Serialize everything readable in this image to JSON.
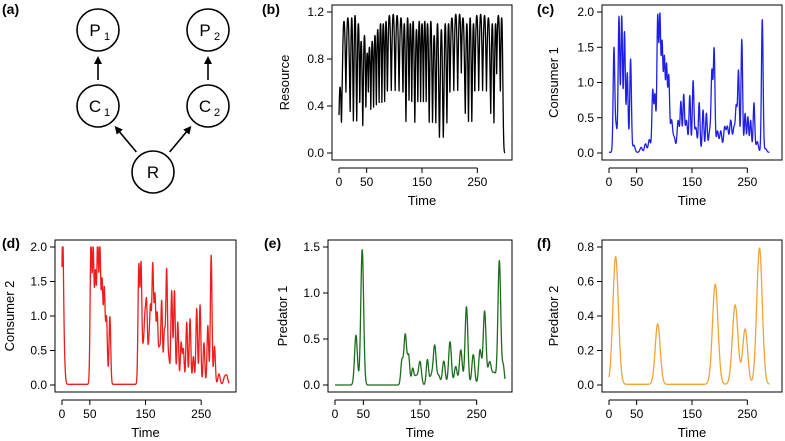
{
  "food_web": {
    "panel_label": "(a)",
    "nodes": [
      {
        "id": "P1",
        "letter": "P",
        "sub": "1"
      },
      {
        "id": "P2",
        "letter": "P",
        "sub": "2"
      },
      {
        "id": "C1",
        "letter": "C",
        "sub": "1"
      },
      {
        "id": "C2",
        "letter": "C",
        "sub": "2"
      },
      {
        "id": "R",
        "letter": "R",
        "sub": ""
      }
    ],
    "edges": [
      [
        "R",
        "C1"
      ],
      [
        "R",
        "C2"
      ],
      [
        "C1",
        "P1"
      ],
      [
        "C2",
        "P2"
      ]
    ]
  },
  "colors": {
    "resource": "#000000",
    "consumer1": "#1f1fe6",
    "consumer2": "#ee1c1c",
    "predator1": "#1e6b1e",
    "predator2": "#f2a33a"
  },
  "chart_data": [
    {
      "panel": "(b)",
      "type": "line",
      "ylabel": "Resource",
      "xlabel": "Time",
      "xlim": [
        0,
        300
      ],
      "ylim": [
        0,
        1.2
      ],
      "xticks": [
        0,
        50,
        150,
        250
      ],
      "yticks": [
        0.0,
        0.4,
        0.8,
        1.2
      ],
      "ytick_labels": [
        "0.0",
        "0.4",
        "0.8",
        "1.2"
      ],
      "color_key": "resource",
      "kind": "resource",
      "t_start": 0,
      "t_end": 300,
      "base": 0.0,
      "peaks": [
        [
          2,
          0.56,
          2
        ],
        [
          9,
          1.12,
          3
        ],
        [
          16,
          1.15,
          3
        ],
        [
          23,
          1.15,
          2
        ],
        [
          29,
          1.17,
          2
        ],
        [
          35,
          1.1,
          2
        ],
        [
          40,
          0.95,
          2
        ],
        [
          46,
          1.0,
          2
        ],
        [
          51,
          0.85,
          2
        ],
        [
          55,
          0.9,
          2
        ],
        [
          60,
          0.95,
          2
        ],
        [
          65,
          1.0,
          2
        ],
        [
          70,
          1.05,
          2
        ],
        [
          75,
          1.1,
          2
        ],
        [
          80,
          1.1,
          2
        ],
        [
          85,
          1.12,
          2
        ],
        [
          91,
          1.17,
          3
        ],
        [
          98,
          1.18,
          3
        ],
        [
          105,
          1.17,
          3
        ],
        [
          112,
          1.15,
          3
        ],
        [
          118,
          1.1,
          2
        ],
        [
          124,
          1.15,
          2
        ],
        [
          129,
          1.1,
          2
        ],
        [
          134,
          1.12,
          2
        ],
        [
          140,
          1.05,
          2
        ],
        [
          145,
          1.12,
          2
        ],
        [
          150,
          1.1,
          2
        ],
        [
          155,
          1.12,
          2
        ],
        [
          160,
          1.1,
          2
        ],
        [
          166,
          1.12,
          2
        ],
        [
          172,
          1.0,
          2
        ],
        [
          178,
          1.1,
          2
        ],
        [
          185,
          1.05,
          2
        ],
        [
          192,
          1.1,
          2
        ],
        [
          198,
          1.1,
          2
        ],
        [
          204,
          1.15,
          3
        ],
        [
          211,
          1.18,
          3
        ],
        [
          218,
          1.18,
          3
        ],
        [
          224,
          1.15,
          3
        ],
        [
          231,
          1.1,
          2
        ],
        [
          237,
          1.15,
          2
        ],
        [
          243,
          1.1,
          2
        ],
        [
          249,
          1.17,
          3
        ],
        [
          256,
          1.18,
          3
        ],
        [
          263,
          1.17,
          3
        ],
        [
          270,
          1.15,
          3
        ],
        [
          277,
          1.1,
          2
        ],
        [
          283,
          1.1,
          2
        ],
        [
          288,
          1.17,
          3
        ],
        [
          294,
          1.15,
          2
        ]
      ]
    },
    {
      "panel": "(c)",
      "type": "line",
      "ylabel": "Consumer 1",
      "xlabel": "Time",
      "xlim": [
        0,
        300
      ],
      "ylim": [
        0,
        2.0
      ],
      "xticks": [
        0,
        50,
        150,
        250
      ],
      "yticks": [
        0.0,
        0.5,
        1.0,
        1.5,
        2.0
      ],
      "ytick_labels": [
        "0.0",
        "0.5",
        "1.0",
        "1.5",
        "2.0"
      ],
      "color_key": "consumer1",
      "kind": "spikes",
      "t_start": 0,
      "t_end": 290,
      "base": 0.01,
      "peaks": [
        [
          9,
          1.48,
          1.5
        ],
        [
          13,
          0.35,
          1.5
        ],
        [
          18,
          1.92,
          1.5
        ],
        [
          23,
          1.92,
          1.5
        ],
        [
          28,
          1.7,
          1.5
        ],
        [
          33,
          1.12,
          1.5
        ],
        [
          39,
          1.32,
          1.5
        ],
        [
          45,
          0.1,
          2
        ],
        [
          58,
          0.07,
          2
        ],
        [
          66,
          0.12,
          2
        ],
        [
          73,
          0.18,
          2
        ],
        [
          79,
          0.87,
          1.5
        ],
        [
          83,
          0.8,
          1.5
        ],
        [
          88,
          1.9,
          1.5
        ],
        [
          92,
          1.88,
          1.5
        ],
        [
          96,
          1.5,
          1.5
        ],
        [
          100,
          1.3,
          1.5
        ],
        [
          104,
          1.2,
          1.5
        ],
        [
          108,
          1.05,
          1.5
        ],
        [
          113,
          0.45,
          2
        ],
        [
          118,
          0.2,
          2
        ],
        [
          125,
          0.45,
          2
        ],
        [
          130,
          0.7,
          1.5
        ],
        [
          135,
          0.8,
          1.5
        ],
        [
          140,
          0.45,
          2
        ],
        [
          146,
          0.8,
          1.5
        ],
        [
          152,
          1.0,
          1.5
        ],
        [
          157,
          0.35,
          2
        ],
        [
          163,
          0.7,
          1.5
        ],
        [
          170,
          0.6,
          1.5
        ],
        [
          176,
          0.55,
          1.5
        ],
        [
          182,
          0.3,
          2
        ],
        [
          186,
          1.1,
          1.5
        ],
        [
          190,
          1.45,
          1.5
        ],
        [
          196,
          0.3,
          2
        ],
        [
          202,
          0.3,
          2
        ],
        [
          209,
          0.35,
          2
        ],
        [
          214,
          0.35,
          2
        ],
        [
          220,
          0.45,
          2
        ],
        [
          226,
          0.35,
          2
        ],
        [
          230,
          0.6,
          1.5
        ],
        [
          234,
          1.15,
          1.5
        ],
        [
          240,
          1.6,
          1.5
        ],
        [
          246,
          0.55,
          1.5
        ],
        [
          251,
          0.5,
          1.5
        ],
        [
          256,
          0.45,
          1.5
        ],
        [
          262,
          0.7,
          1.5
        ],
        [
          268,
          0.15,
          2
        ],
        [
          277,
          1.88,
          1.5
        ],
        [
          283,
          0.05,
          2
        ]
      ]
    },
    {
      "panel": "(d)",
      "type": "line",
      "ylabel": "Consumer 2",
      "xlabel": "Time",
      "xlim": [
        0,
        300
      ],
      "ylim": [
        0,
        2.0
      ],
      "xticks": [
        0,
        50,
        150,
        250
      ],
      "yticks": [
        0.0,
        0.5,
        1.0,
        1.5,
        2.0
      ],
      "ytick_labels": [
        "0.0",
        "0.5",
        "1.0",
        "1.5",
        "2.0"
      ],
      "color_key": "consumer2",
      "kind": "spikes",
      "t_start": 0,
      "t_end": 300,
      "base": 0.01,
      "peaks": [
        [
          1,
          1.9,
          1.5
        ],
        [
          3,
          0.55,
          2
        ],
        [
          52,
          2.02,
          1.5
        ],
        [
          56,
          1.9,
          1.5
        ],
        [
          60,
          1.55,
          1.5
        ],
        [
          64,
          2.0,
          1.5
        ],
        [
          68,
          1.95,
          1.5
        ],
        [
          72,
          1.45,
          1.5
        ],
        [
          76,
          1.35,
          1.5
        ],
        [
          80,
          0.95,
          1.5
        ],
        [
          86,
          0.98,
          1.5
        ],
        [
          138,
          1.7,
          1.5
        ],
        [
          142,
          1.72,
          1.5
        ],
        [
          146,
          0.45,
          1.5
        ],
        [
          149,
          0.85,
          1.5
        ],
        [
          152,
          1.1,
          1.5
        ],
        [
          156,
          0.5,
          1.5
        ],
        [
          159,
          1.05,
          1.5
        ],
        [
          163,
          1.7,
          1.5
        ],
        [
          167,
          1.25,
          1.5
        ],
        [
          171,
          1.0,
          1.5
        ],
        [
          175,
          0.5,
          1.5
        ],
        [
          179,
          1.2,
          1.5
        ],
        [
          184,
          0.75,
          1.5
        ],
        [
          188,
          1.65,
          1.5
        ],
        [
          192,
          0.35,
          1.5
        ],
        [
          197,
          1.35,
          1.5
        ],
        [
          202,
          1.35,
          1.5
        ],
        [
          208,
          0.9,
          1.5
        ],
        [
          214,
          0.6,
          1.5
        ],
        [
          218,
          0.5,
          1.5
        ],
        [
          224,
          0.9,
          1.5
        ],
        [
          230,
          0.95,
          1.5
        ],
        [
          236,
          0.4,
          1.5
        ],
        [
          242,
          1.1,
          1.5
        ],
        [
          248,
          1.15,
          1.5
        ],
        [
          255,
          0.6,
          1.5
        ],
        [
          262,
          0.85,
          1.5
        ],
        [
          268,
          1.87,
          1.5
        ],
        [
          274,
          0.55,
          1.5
        ],
        [
          282,
          0.15,
          2
        ],
        [
          292,
          0.1,
          2
        ],
        [
          296,
          0.12,
          2
        ]
      ]
    },
    {
      "panel": "(e)",
      "type": "line",
      "ylabel": "Predator 1",
      "xlabel": "Time",
      "xlim": [
        0,
        300
      ],
      "ylim": [
        0,
        1.5
      ],
      "xticks": [
        0,
        50,
        150,
        250
      ],
      "yticks": [
        0.0,
        0.5,
        1.0,
        1.5
      ],
      "ytick_labels": [
        "0.0",
        "0.5",
        "1.0",
        "1.5"
      ],
      "color_key": "predator1",
      "kind": "spikes",
      "t_start": 0,
      "t_end": 300,
      "base": 0.0,
      "peaks": [
        [
          37,
          0.54,
          2.5
        ],
        [
          48,
          1.47,
          2.5
        ],
        [
          118,
          0.25,
          2
        ],
        [
          124,
          0.55,
          2.5
        ],
        [
          130,
          0.3,
          2
        ],
        [
          137,
          0.17,
          2
        ],
        [
          143,
          0.1,
          3
        ],
        [
          150,
          0.25,
          2.5
        ],
        [
          163,
          0.27,
          2
        ],
        [
          170,
          0.1,
          3
        ],
        [
          176,
          0.42,
          2.5
        ],
        [
          183,
          0.1,
          2.5
        ],
        [
          192,
          0.26,
          2.5
        ],
        [
          203,
          0.47,
          2.5
        ],
        [
          213,
          0.2,
          2.5
        ],
        [
          222,
          0.38,
          2.5
        ],
        [
          232,
          0.85,
          2.5
        ],
        [
          244,
          0.33,
          2.5
        ],
        [
          256,
          0.38,
          2.5
        ],
        [
          264,
          0.8,
          2.5
        ],
        [
          273,
          0.25,
          3
        ],
        [
          281,
          0.13,
          3
        ],
        [
          290,
          1.35,
          2.5
        ],
        [
          297,
          0.2,
          2
        ]
      ]
    },
    {
      "panel": "(f)",
      "type": "line",
      "ylabel": "Predator 2",
      "xlabel": "Time",
      "xlim": [
        0,
        300
      ],
      "ylim": [
        0,
        0.8
      ],
      "xticks": [
        0,
        50,
        150,
        250
      ],
      "yticks": [
        0.0,
        0.2,
        0.4,
        0.6,
        0.8
      ],
      "ytick_labels": [
        "0.0",
        "0.2",
        "0.4",
        "0.6",
        "0.8"
      ],
      "color_key": "predator2",
      "kind": "spikes",
      "t_start": 0,
      "t_end": 290,
      "base": 0.004,
      "peaks": [
        [
          12,
          0.74,
          5
        ],
        [
          88,
          0.35,
          4.5
        ],
        [
          192,
          0.58,
          5
        ],
        [
          228,
          0.46,
          5
        ],
        [
          246,
          0.32,
          4.5
        ],
        [
          272,
          0.79,
          5
        ]
      ]
    }
  ]
}
